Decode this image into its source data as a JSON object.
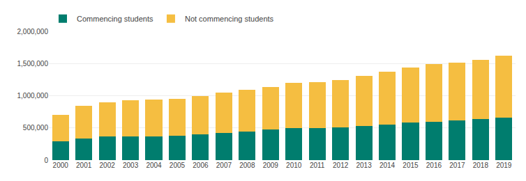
{
  "chart_data": {
    "type": "bar",
    "stacked": true,
    "categories": [
      "2000",
      "2001",
      "2002",
      "2003",
      "2004",
      "2005",
      "2006",
      "2007",
      "2008",
      "2009",
      "2010",
      "2011",
      "2012",
      "2013",
      "2014",
      "2015",
      "2016",
      "2017",
      "2018",
      "2019"
    ],
    "series": [
      {
        "name": "Commencing students",
        "color": "#007D6E",
        "values": [
          290000,
          340000,
          365000,
          365000,
          370000,
          375000,
          395000,
          420000,
          440000,
          475000,
          495000,
          500000,
          505000,
          525000,
          555000,
          580000,
          590000,
          615000,
          640000,
          660000
        ]
      },
      {
        "name": "Not commencing students",
        "color": "#F5BE41",
        "values": [
          415000,
          500000,
          535000,
          565000,
          575000,
          580000,
          600000,
          630000,
          650000,
          665000,
          700000,
          715000,
          740000,
          785000,
          820000,
          855000,
          900000,
          900000,
          920000,
          965000
        ]
      }
    ],
    "ylim": [
      0,
      2000000
    ],
    "yticks": [
      0,
      {
        "value": 500000,
        "label": "500,000"
      },
      {
        "value": 1000000,
        "label": "1,000,000"
      },
      {
        "value": 1500000,
        "label": "1,500,000"
      },
      {
        "value": 2000000,
        "label": "2,000,000"
      }
    ],
    "grid": true,
    "legend": "upper left"
  }
}
